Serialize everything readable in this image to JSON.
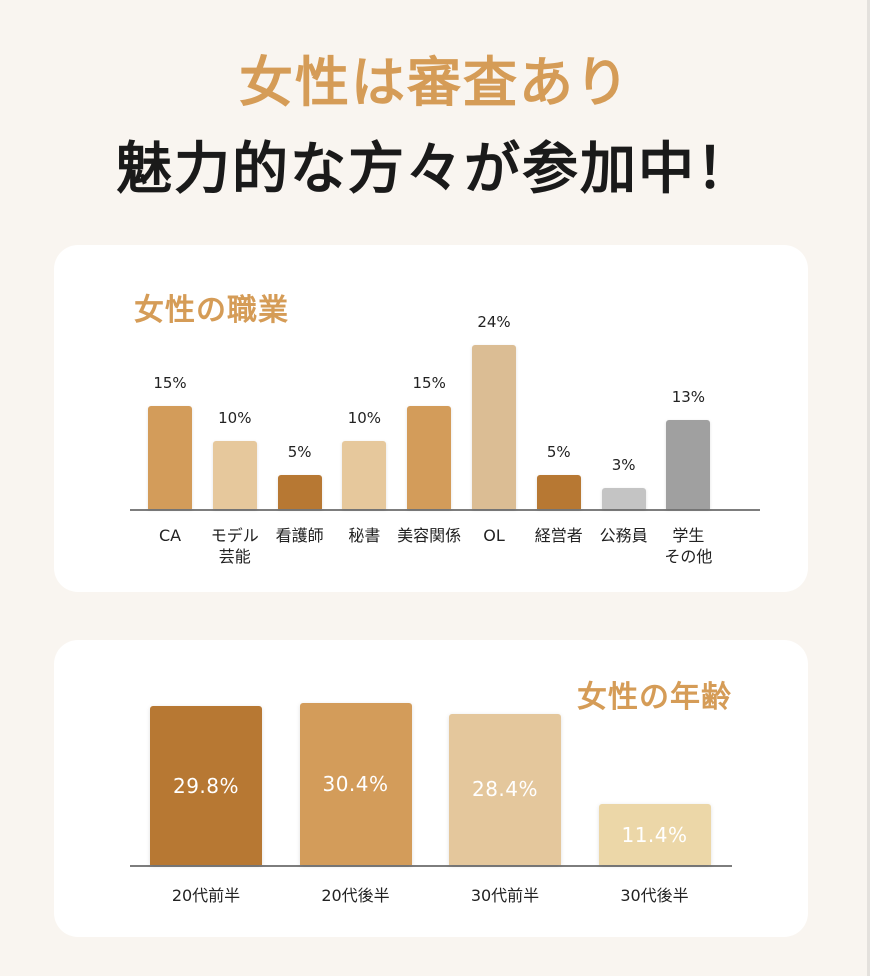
{
  "header": {
    "line1": "女性は審査あり",
    "line2": "魅力的な方々が参加中！"
  },
  "colors": {
    "background": "#f9f5f0",
    "accent": "#d59c57",
    "card": "#ffffff"
  },
  "occupation_card": {
    "title": "女性の職業"
  },
  "age_card": {
    "title": "女性の年齢"
  },
  "chart_data": [
    {
      "type": "bar",
      "title": "女性の職業",
      "categories": [
        "CA",
        "モデル\n芸能",
        "看護師",
        "秘書",
        "美容関係",
        "OL",
        "経営者",
        "公務員",
        "学生\nその他"
      ],
      "values": [
        15,
        10,
        5,
        10,
        15,
        24,
        5,
        3,
        13
      ],
      "value_labels": [
        "15%",
        "10%",
        "5%",
        "10%",
        "15%",
        "24%",
        "5%",
        "3%",
        "13%"
      ],
      "bar_colors": [
        "#d39c5a",
        "#e6c89c",
        "#b77833",
        "#e6c89c",
        "#d39c5a",
        "#dbbd94",
        "#b77833",
        "#c4c4c4",
        "#a0a0a0"
      ],
      "xlabel": "",
      "ylabel": "",
      "unit": "%",
      "grid": false,
      "legend": "none"
    },
    {
      "type": "bar",
      "title": "女性の年齢",
      "categories": [
        "20代前半",
        "20代後半",
        "30代前半",
        "30代後半"
      ],
      "values": [
        29.8,
        30.4,
        28.4,
        11.4
      ],
      "value_labels": [
        "29.8%",
        "30.4%",
        "28.4%",
        "11.4%"
      ],
      "bar_colors": [
        "#b77833",
        "#d39c5a",
        "#e4c79c",
        "#ecd7a8"
      ],
      "xlabel": "",
      "ylabel": "",
      "unit": "%",
      "grid": false,
      "legend": "none"
    }
  ]
}
